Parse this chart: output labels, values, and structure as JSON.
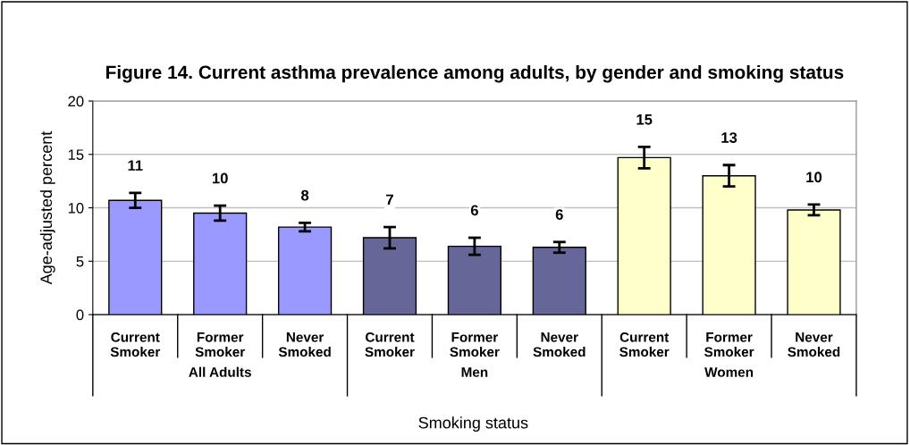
{
  "chart_data": {
    "type": "bar",
    "title": "Figure 14. Current asthma prevalence among adults, by gender and smoking status",
    "xlabel": "Smoking status",
    "ylabel": "Age-adjusted percent",
    "categories": [
      "Current\nSmoker",
      "Former\nSmoker",
      "Never\nSmoked",
      "Current\nSmoker",
      "Former\nSmoker",
      "Never\nSmoked",
      "Current\nSmoker",
      "Former\nSmoker",
      "Never\nSmoked"
    ],
    "values": [
      10.7,
      9.5,
      8.2,
      7.2,
      6.4,
      6.3,
      14.7,
      13.0,
      9.8
    ],
    "errors": [
      0.7,
      0.7,
      0.4,
      1.0,
      0.8,
      0.5,
      1.0,
      1.0,
      0.5
    ],
    "value_labels": [
      "11",
      "10",
      "8",
      "7",
      "6",
      "6",
      "15",
      "13",
      "10"
    ],
    "colors": [
      "#9999ff",
      "#9999ff",
      "#9999ff",
      "#666699",
      "#666699",
      "#666699",
      "#ffffcc",
      "#ffffcc",
      "#ffffcc"
    ],
    "annotations": [
      "All Adults",
      "Men",
      "Women"
    ],
    "ylim": [
      0,
      20
    ],
    "yticks": [
      0,
      5,
      10,
      15,
      20
    ],
    "grid": "y"
  }
}
